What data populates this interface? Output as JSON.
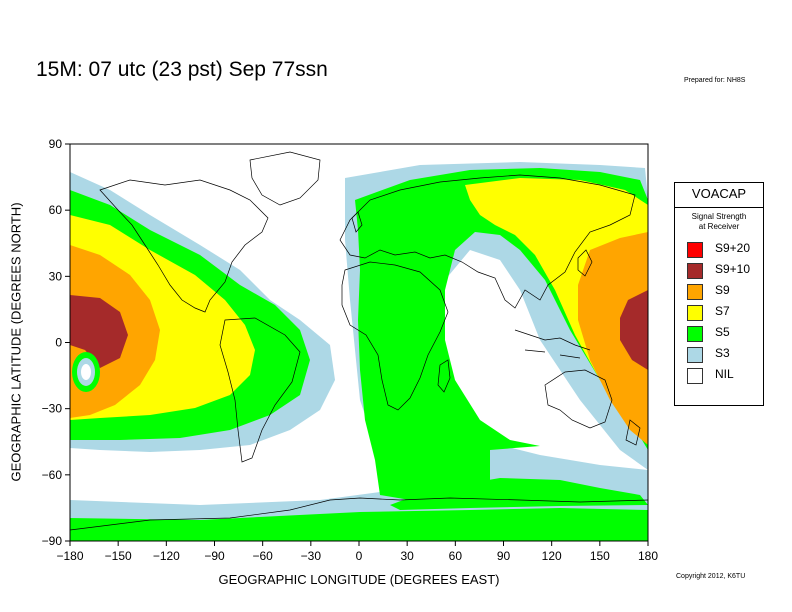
{
  "header": {
    "title": "15M:  07 utc (23 pst) Sep 77ssn",
    "prepared": "Prepared for: NH8S"
  },
  "footer": {
    "copyright": "Copyright 2012, K6TU"
  },
  "axes": {
    "xlabel": "GEOGRAPHIC LONGITUDE (DEGREES EAST)",
    "ylabel": "GEOGRAPHIC LATITUDE (DEGREES NORTH)",
    "x_ticks": [
      "−180",
      "−150",
      "−120",
      "−90",
      "−60",
      "−30",
      "0",
      "30",
      "60",
      "90",
      "120",
      "150",
      "180"
    ],
    "y_ticks": [
      "90",
      "60",
      "30",
      "0",
      "−30",
      "−60",
      "−90"
    ],
    "x_range": [
      -180,
      180
    ],
    "y_range": [
      -90,
      90
    ]
  },
  "legend": {
    "title": "VOACAP",
    "subtitle_line1": "Signal Strength",
    "subtitle_line2": "at Receiver",
    "items": [
      {
        "label": "S9+20",
        "color": "#ff0000"
      },
      {
        "label": "S9+10",
        "color": "#a52a2a"
      },
      {
        "label": "S9",
        "color": "#ffa500"
      },
      {
        "label": "S7",
        "color": "#ffff00"
      },
      {
        "label": "S5",
        "color": "#00ff00"
      },
      {
        "label": "S3",
        "color": "#add8e6"
      },
      {
        "label": "NIL",
        "color": "#ffffff"
      }
    ]
  },
  "colors": {
    "s9": "#ffa500",
    "s910": "#a52a2a",
    "s7": "#ffff00",
    "s5": "#00ff00",
    "s3": "#add8e6",
    "nil": "#ffffff"
  }
}
